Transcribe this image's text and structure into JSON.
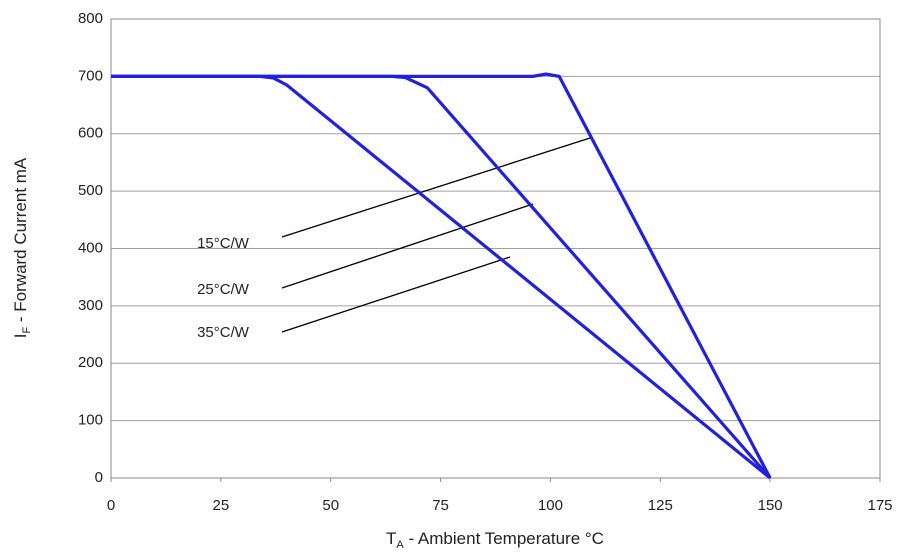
{
  "chart_data": {
    "type": "line",
    "x_label": {
      "main": "T",
      "sub": "A",
      "rest": " - Ambient Temperature °C"
    },
    "y_label": {
      "main": "I",
      "sub": "F",
      "rest": " - Forward Current mA"
    },
    "xlim": [
      0,
      175
    ],
    "xticks": [
      0,
      25,
      50,
      75,
      100,
      125,
      150,
      175
    ],
    "ylim": [
      0,
      800
    ],
    "yticks": [
      0,
      100,
      200,
      300,
      400,
      500,
      600,
      700,
      800
    ],
    "grid": true,
    "series": [
      {
        "name": "15°C/W",
        "color": "#2020e0",
        "x": [
          0,
          96,
          99,
          102,
          150
        ],
        "values": [
          700,
          700,
          704,
          700,
          0
        ]
      },
      {
        "name": "25°C/W",
        "color": "#2020e0",
        "x": [
          0,
          64,
          67,
          72,
          150
        ],
        "values": [
          700,
          700,
          698,
          680,
          0
        ]
      },
      {
        "name": "35°C/W",
        "color": "#2020e0",
        "x": [
          0,
          34,
          37,
          40,
          150
        ],
        "values": [
          700,
          700,
          697,
          685,
          0
        ]
      }
    ]
  }
}
